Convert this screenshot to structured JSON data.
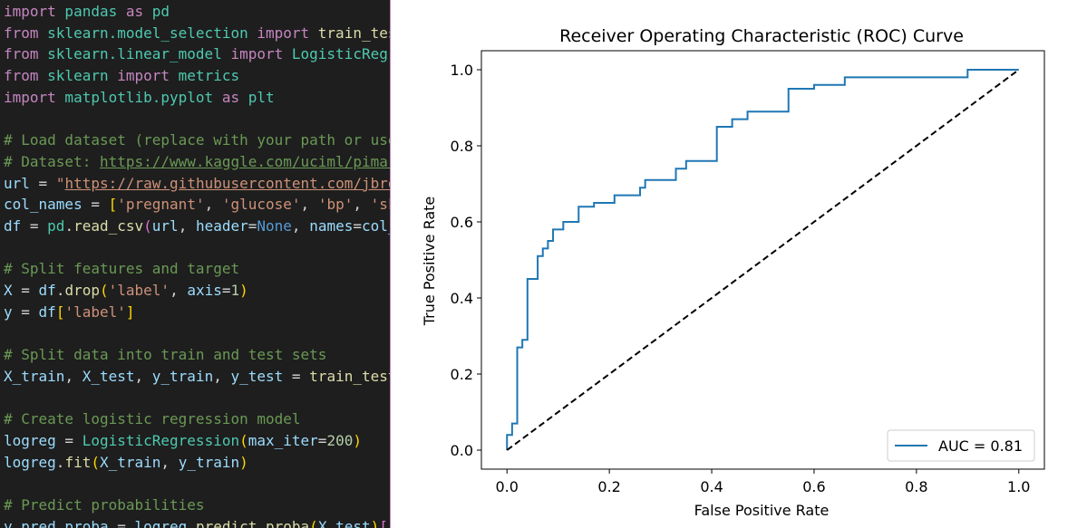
{
  "editor": {
    "lines": [
      [
        {
          "t": "import",
          "c": "kw"
        },
        {
          "t": " pandas ",
          "c": "mod"
        },
        {
          "t": "as",
          "c": "kw"
        },
        {
          "t": " pd",
          "c": "mod"
        }
      ],
      [
        {
          "t": "from",
          "c": "kw"
        },
        {
          "t": " sklearn.model_selection ",
          "c": "mod"
        },
        {
          "t": "import",
          "c": "kw"
        },
        {
          "t": " train_test_split",
          "c": "fn"
        }
      ],
      [
        {
          "t": "from",
          "c": "kw"
        },
        {
          "t": " sklearn.linear_model ",
          "c": "mod"
        },
        {
          "t": "import",
          "c": "kw"
        },
        {
          "t": " LogisticRegression",
          "c": "mod"
        }
      ],
      [
        {
          "t": "from",
          "c": "kw"
        },
        {
          "t": " sklearn ",
          "c": "mod"
        },
        {
          "t": "import",
          "c": "kw"
        },
        {
          "t": " metrics",
          "c": "mod"
        }
      ],
      [
        {
          "t": "import",
          "c": "kw"
        },
        {
          "t": " matplotlib.pyplot ",
          "c": "mod"
        },
        {
          "t": "as",
          "c": "kw"
        },
        {
          "t": " plt",
          "c": "mod"
        }
      ],
      [],
      [
        {
          "t": "# Load dataset (replace with your path or use",
          "c": "cmt"
        }
      ],
      [
        {
          "t": "# Dataset: ",
          "c": "cmt"
        },
        {
          "t": "https://www.kaggle.com/uciml/pima-indians-diabetes-database",
          "c": "curl"
        }
      ],
      [
        {
          "t": "url",
          "c": "var"
        },
        {
          "t": " = ",
          "c": "pl"
        },
        {
          "t": "\"",
          "c": "str"
        },
        {
          "t": "https://raw.githubusercontent.com/jbrownlee/Datasets",
          "c": "url"
        }
      ],
      [
        {
          "t": "col_names",
          "c": "var"
        },
        {
          "t": " = ",
          "c": "pl"
        },
        {
          "t": "[",
          "c": "br1"
        },
        {
          "t": "'pregnant'",
          "c": "str"
        },
        {
          "t": ", ",
          "c": "pl"
        },
        {
          "t": "'glucose'",
          "c": "str"
        },
        {
          "t": ", ",
          "c": "pl"
        },
        {
          "t": "'bp'",
          "c": "str"
        },
        {
          "t": ", ",
          "c": "pl"
        },
        {
          "t": "'skin'",
          "c": "str"
        }
      ],
      [
        {
          "t": "df",
          "c": "var"
        },
        {
          "t": " = ",
          "c": "pl"
        },
        {
          "t": "pd",
          "c": "mod"
        },
        {
          "t": ".",
          "c": "pl"
        },
        {
          "t": "read_csv",
          "c": "fn"
        },
        {
          "t": "(",
          "c": "br2"
        },
        {
          "t": "url",
          "c": "var"
        },
        {
          "t": ", ",
          "c": "pl"
        },
        {
          "t": "header",
          "c": "var"
        },
        {
          "t": "=",
          "c": "pl"
        },
        {
          "t": "None",
          "c": "const"
        },
        {
          "t": ", ",
          "c": "pl"
        },
        {
          "t": "names",
          "c": "var"
        },
        {
          "t": "=",
          "c": "pl"
        },
        {
          "t": "col_names",
          "c": "var"
        }
      ],
      [],
      [
        {
          "t": "# Split features and target",
          "c": "cmt"
        }
      ],
      [
        {
          "t": "X",
          "c": "var"
        },
        {
          "t": " = ",
          "c": "pl"
        },
        {
          "t": "df",
          "c": "var"
        },
        {
          "t": ".",
          "c": "pl"
        },
        {
          "t": "drop",
          "c": "fn"
        },
        {
          "t": "(",
          "c": "br1"
        },
        {
          "t": "'label'",
          "c": "str"
        },
        {
          "t": ", ",
          "c": "pl"
        },
        {
          "t": "axis",
          "c": "var"
        },
        {
          "t": "=",
          "c": "pl"
        },
        {
          "t": "1",
          "c": "num"
        },
        {
          "t": ")",
          "c": "br1"
        }
      ],
      [
        {
          "t": "y",
          "c": "var"
        },
        {
          "t": " = ",
          "c": "pl"
        },
        {
          "t": "df",
          "c": "var"
        },
        {
          "t": "[",
          "c": "br1"
        },
        {
          "t": "'label'",
          "c": "str"
        },
        {
          "t": "]",
          "c": "br1"
        }
      ],
      [],
      [
        {
          "t": "# Split data into train and test sets",
          "c": "cmt"
        }
      ],
      [
        {
          "t": "X_train",
          "c": "var"
        },
        {
          "t": ", ",
          "c": "pl"
        },
        {
          "t": "X_test",
          "c": "var"
        },
        {
          "t": ", ",
          "c": "pl"
        },
        {
          "t": "y_train",
          "c": "var"
        },
        {
          "t": ", ",
          "c": "pl"
        },
        {
          "t": "y_test",
          "c": "var"
        },
        {
          "t": " = ",
          "c": "pl"
        },
        {
          "t": "train_test_split",
          "c": "fn"
        }
      ],
      [],
      [
        {
          "t": "# Create logistic regression model",
          "c": "cmt"
        }
      ],
      [
        {
          "t": "logreg",
          "c": "var"
        },
        {
          "t": " = ",
          "c": "pl"
        },
        {
          "t": "LogisticRegression",
          "c": "mod"
        },
        {
          "t": "(",
          "c": "br1"
        },
        {
          "t": "max_iter",
          "c": "var"
        },
        {
          "t": "=",
          "c": "pl"
        },
        {
          "t": "200",
          "c": "num"
        },
        {
          "t": ")",
          "c": "br1"
        }
      ],
      [
        {
          "t": "logreg",
          "c": "var"
        },
        {
          "t": ".",
          "c": "pl"
        },
        {
          "t": "fit",
          "c": "fn"
        },
        {
          "t": "(",
          "c": "br1"
        },
        {
          "t": "X_train",
          "c": "var"
        },
        {
          "t": ", ",
          "c": "pl"
        },
        {
          "t": "y_train",
          "c": "var"
        },
        {
          "t": ")",
          "c": "br1"
        }
      ],
      [],
      [
        {
          "t": "# Predict probabilities",
          "c": "cmt"
        }
      ],
      [
        {
          "t": "y_pred_proba",
          "c": "var"
        },
        {
          "t": " = ",
          "c": "pl"
        },
        {
          "t": "logreg",
          "c": "var"
        },
        {
          "t": ".",
          "c": "pl"
        },
        {
          "t": "predict_proba",
          "c": "fn"
        },
        {
          "t": "(",
          "c": "br1"
        },
        {
          "t": "X_test",
          "c": "var"
        },
        {
          "t": ")",
          "c": "br1"
        },
        {
          "t": "[",
          "c": "br2"
        }
      ]
    ]
  },
  "chart_data": {
    "type": "line",
    "title": "Receiver Operating Characteristic (ROC) Curve",
    "xlabel": "False Positive Rate",
    "ylabel": "True Positive Rate",
    "xlim": [
      -0.05,
      1.05
    ],
    "ylim": [
      -0.05,
      1.05
    ],
    "xticks": [
      0.0,
      0.2,
      0.4,
      0.6,
      0.8,
      1.0
    ],
    "yticks": [
      0.0,
      0.2,
      0.4,
      0.6,
      0.8,
      1.0
    ],
    "xtick_labels": [
      "0.0",
      "0.2",
      "0.4",
      "0.6",
      "0.8",
      "1.0"
    ],
    "ytick_labels": [
      "0.0",
      "0.2",
      "0.4",
      "0.6",
      "0.8",
      "1.0"
    ],
    "grid": false,
    "legend_position": "lower-right",
    "series": [
      {
        "name": "AUC = 0.81",
        "color": "#1f77b4",
        "style": "solid",
        "x": [
          0.0,
          0.0,
          0.0,
          0.01,
          0.01,
          0.02,
          0.02,
          0.03,
          0.03,
          0.04,
          0.04,
          0.06,
          0.06,
          0.07,
          0.07,
          0.08,
          0.08,
          0.09,
          0.09,
          0.1,
          0.1,
          0.11,
          0.11,
          0.14,
          0.14,
          0.17,
          0.17,
          0.21,
          0.21,
          0.26,
          0.26,
          0.27,
          0.27,
          0.33,
          0.33,
          0.35,
          0.35,
          0.41,
          0.41,
          0.44,
          0.44,
          0.47,
          0.47,
          0.55,
          0.55,
          0.6,
          0.6,
          0.66,
          0.66,
          0.9,
          0.9,
          1.0
        ],
        "y": [
          0.0,
          0.02,
          0.04,
          0.04,
          0.07,
          0.07,
          0.27,
          0.27,
          0.29,
          0.29,
          0.45,
          0.45,
          0.51,
          0.51,
          0.53,
          0.53,
          0.55,
          0.55,
          0.58,
          0.58,
          0.58,
          0.58,
          0.6,
          0.6,
          0.64,
          0.64,
          0.65,
          0.65,
          0.67,
          0.67,
          0.69,
          0.69,
          0.71,
          0.71,
          0.74,
          0.74,
          0.76,
          0.76,
          0.85,
          0.85,
          0.87,
          0.87,
          0.89,
          0.89,
          0.95,
          0.95,
          0.96,
          0.96,
          0.98,
          0.98,
          1.0,
          1.0
        ]
      },
      {
        "name": "",
        "color": "#000000",
        "style": "dashed",
        "x": [
          0.0,
          1.0
        ],
        "y": [
          0.0,
          1.0
        ]
      }
    ]
  }
}
